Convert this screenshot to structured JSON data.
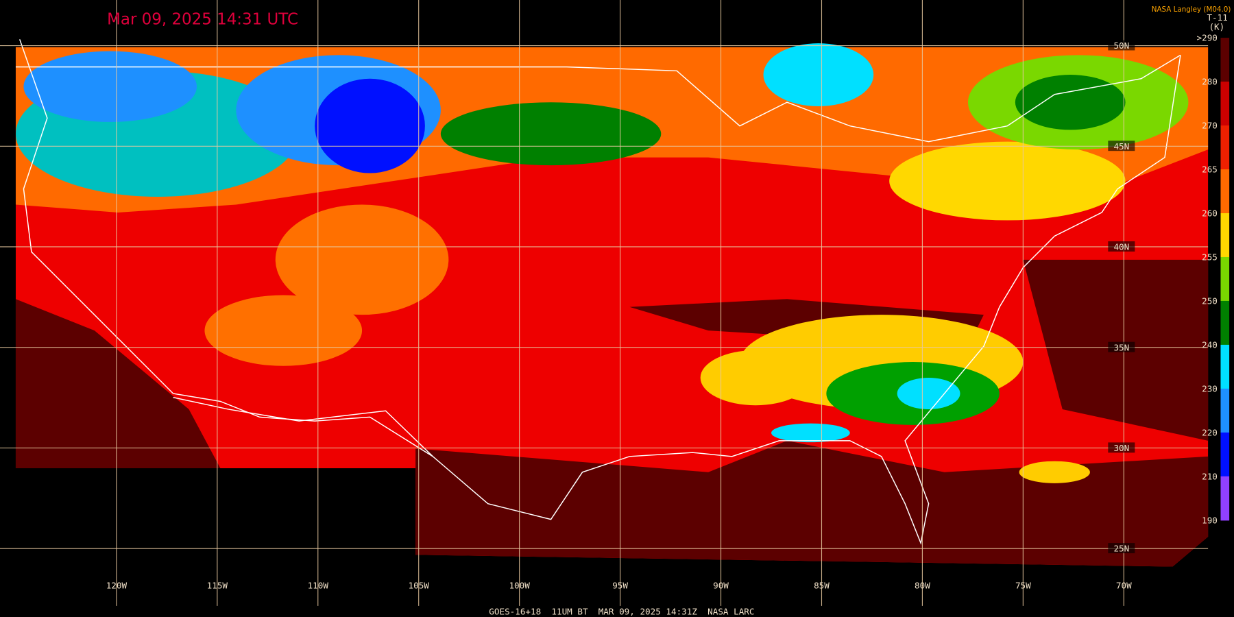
{
  "header": {
    "timestamp": "Mar 09, 2025 14:31 UTC",
    "credit": "NASA Langley (M04.0)",
    "product": "T-11",
    "unit": "(K)"
  },
  "colorbar": {
    "labels": [
      ">290",
      "280",
      "270",
      "265",
      "260",
      "255",
      "250",
      "240",
      "230",
      "220",
      "210",
      "190"
    ]
  },
  "map": {
    "longitude_labels": [
      "120W",
      "115W",
      "110W",
      "105W",
      "100W",
      "95W",
      "90W",
      "85W",
      "80W",
      "75W",
      "70W"
    ],
    "latitude_labels": [
      "50N",
      "45N",
      "40N",
      "35N",
      "30N",
      "25N"
    ]
  },
  "footer": "GOES-16+18  11UM BT  MAR 09, 2025 14:31Z  NASA LARC"
}
